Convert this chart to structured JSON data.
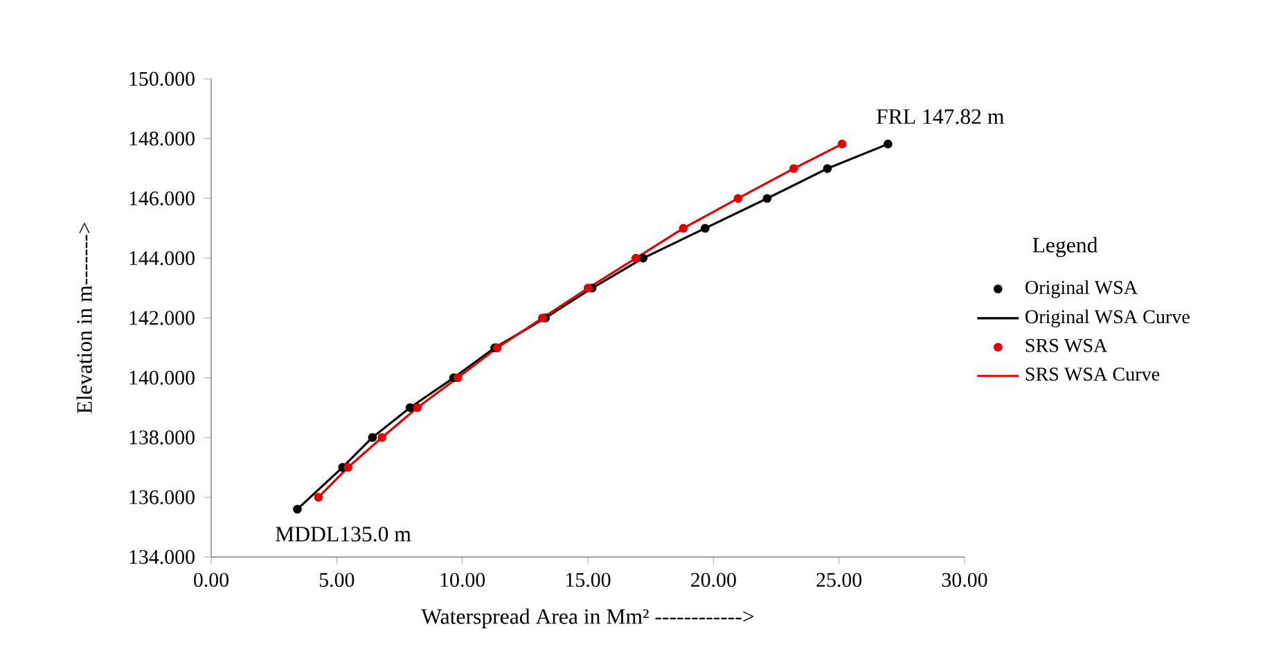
{
  "chart_data": {
    "type": "line",
    "xlabel": "Waterspread  Area in Mm² ------------>",
    "ylabel": "Elevation in  m------->",
    "legend_title": "Legend",
    "legend": "right",
    "xlim": [
      0,
      30
    ],
    "ylim": [
      134,
      150
    ],
    "xticks": [
      {
        "value": 0,
        "label": "0.00"
      },
      {
        "value": 5,
        "label": "5.00"
      },
      {
        "value": 10,
        "label": "10.00"
      },
      {
        "value": 15,
        "label": "15.00"
      },
      {
        "value": 20,
        "label": "20.00"
      },
      {
        "value": 25,
        "label": "25.00"
      },
      {
        "value": 30,
        "label": "30.00"
      }
    ],
    "yticks": [
      {
        "value": 134,
        "label": "134.000"
      },
      {
        "value": 136,
        "label": "136.000"
      },
      {
        "value": 138,
        "label": "138.000"
      },
      {
        "value": 140,
        "label": "140.000"
      },
      {
        "value": 142,
        "label": "142.000"
      },
      {
        "value": 144,
        "label": "144.000"
      },
      {
        "value": 146,
        "label": "146.000"
      },
      {
        "value": 148,
        "label": "148.000"
      },
      {
        "value": 150,
        "label": "150.000"
      }
    ],
    "series": [
      {
        "name": "Original WSA",
        "type": "scatter",
        "marker": "circle",
        "color": "#000000",
        "x": [
          3.43,
          5.23,
          6.42,
          7.92,
          9.66,
          11.29,
          13.31,
          15.17,
          17.2,
          19.67,
          22.14,
          24.54,
          26.95
        ],
        "values": [
          135.6,
          137,
          138,
          139,
          140,
          141,
          142,
          143,
          144,
          145,
          146,
          147,
          147.82
        ]
      },
      {
        "name": "Original WSA Curve",
        "color": "#000000",
        "x": [
          3.43,
          5.23,
          6.42,
          7.92,
          9.66,
          11.29,
          13.31,
          15.17,
          17.2,
          19.67,
          22.14,
          24.54,
          26.95
        ],
        "values": [
          135.6,
          137,
          138,
          139,
          140,
          141,
          142,
          143,
          144,
          145,
          146,
          147,
          147.82
        ]
      },
      {
        "name": "SRS WSA",
        "type": "scatter",
        "marker": "circle",
        "color": "#e60000",
        "x": [
          4.27,
          5.45,
          6.8,
          8.21,
          9.82,
          11.39,
          13.19,
          15.01,
          16.91,
          18.8,
          20.98,
          23.2,
          25.12
        ],
        "values": [
          136,
          137,
          138,
          139,
          140,
          141,
          142,
          143,
          144,
          145,
          146,
          147,
          147.82
        ]
      },
      {
        "name": "SRS WSA Curve",
        "color": "#e60000",
        "x": [
          4.27,
          5.45,
          6.8,
          8.21,
          9.82,
          11.39,
          13.19,
          15.01,
          16.91,
          18.8,
          20.98,
          23.2,
          25.12
        ],
        "values": [
          136,
          137,
          138,
          139,
          140,
          141,
          142,
          143,
          144,
          145,
          146,
          147,
          147.82
        ]
      }
    ],
    "annotations": [
      "MDDL135.0 m",
      {
        "text": "FRL  147.82 m",
        "x": 26.95,
        "y": 147.82
      }
    ]
  }
}
